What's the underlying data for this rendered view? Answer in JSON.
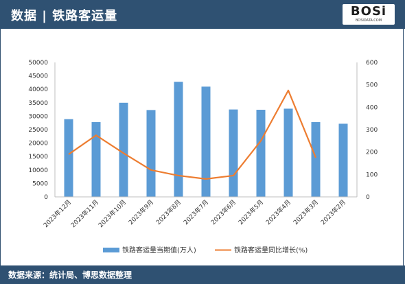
{
  "header": {
    "title": "数据 | 铁路客运量",
    "logo_text": "BOSi",
    "logo_sub": "BOSIDATA.COM"
  },
  "footer": {
    "source": "数据来源：统计局、博思数据整理"
  },
  "colors": {
    "header_bg": "#2f5172",
    "bar": "#5b9bd5",
    "line": "#ed7d31"
  },
  "chart_data": {
    "type": "bar",
    "categories": [
      "2023年12月",
      "2023年11月",
      "2023年10月",
      "2023年9月",
      "2023年8月",
      "2023年7月",
      "2023年6月",
      "2023年5月",
      "2023年4月",
      "2023年3月",
      "2023年2月"
    ],
    "series": [
      {
        "name": "铁路客运量当期值(万人)",
        "type": "bar",
        "axis": "left",
        "values": [
          28900,
          27800,
          35000,
          32300,
          42800,
          41000,
          32500,
          32400,
          32800,
          27800,
          27200
        ]
      },
      {
        "name": "铁路客运量同比增长(%)",
        "type": "line",
        "axis": "right",
        "values": [
          190,
          275,
          195,
          120,
          95,
          80,
          95,
          250,
          475,
          175,
          null
        ]
      }
    ],
    "y_left": {
      "min": 0,
      "max": 50000,
      "ticks": [
        0,
        5000,
        10000,
        15000,
        20000,
        25000,
        30000,
        35000,
        40000,
        45000,
        50000
      ]
    },
    "y_right": {
      "min": 0,
      "max": 600,
      "ticks": [
        0,
        100,
        200,
        300,
        400,
        500,
        600
      ]
    },
    "grid": false,
    "legend": "bottom"
  }
}
